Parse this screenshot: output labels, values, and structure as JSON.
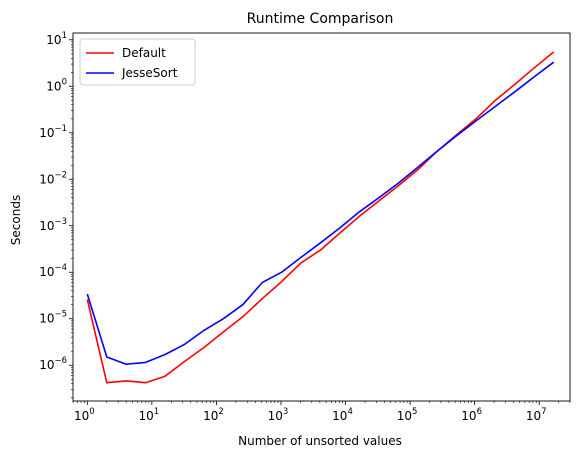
{
  "chart_data": {
    "type": "line",
    "title": "Runtime Comparison",
    "xlabel": "Number of unsorted values",
    "ylabel": "Seconds",
    "xscale": "log",
    "yscale": "log",
    "xlim": [
      0.6,
      30000000
    ],
    "ylim": [
      1.7e-07,
      14
    ],
    "xticks": [
      {
        "value": 1,
        "base": "10",
        "exp": "0"
      },
      {
        "value": 10,
        "base": "10",
        "exp": "1"
      },
      {
        "value": 100,
        "base": "10",
        "exp": "2"
      },
      {
        "value": 1000,
        "base": "10",
        "exp": "3"
      },
      {
        "value": 10000,
        "base": "10",
        "exp": "4"
      },
      {
        "value": 100000,
        "base": "10",
        "exp": "5"
      },
      {
        "value": 1000000,
        "base": "10",
        "exp": "6"
      },
      {
        "value": 10000000,
        "base": "10",
        "exp": "7"
      }
    ],
    "yticks": [
      {
        "value": 1e-06,
        "base": "10",
        "exp": "−6"
      },
      {
        "value": 1e-05,
        "base": "10",
        "exp": "−5"
      },
      {
        "value": 0.0001,
        "base": "10",
        "exp": "−4"
      },
      {
        "value": 0.001,
        "base": "10",
        "exp": "−3"
      },
      {
        "value": 0.01,
        "base": "10",
        "exp": "−2"
      },
      {
        "value": 0.1,
        "base": "10",
        "exp": "−1"
      },
      {
        "value": 1,
        "base": "10",
        "exp": "0"
      },
      {
        "value": 10,
        "base": "10",
        "exp": "1"
      }
    ],
    "grid": false,
    "legend": "top-left",
    "x": [
      1,
      2,
      4,
      8,
      16,
      32,
      64,
      128,
      256,
      512,
      1024,
      2048,
      4096,
      8192,
      16384,
      32768,
      65536,
      131072,
      262144,
      524288,
      1048576,
      2097152,
      4194304,
      8388608,
      16777216
    ],
    "series": [
      {
        "name": "Default",
        "color": "#ff0000",
        "values": [
          2.6e-05,
          4.2e-07,
          4.6e-07,
          4.2e-07,
          5.8e-07,
          1.2e-06,
          2.4e-06,
          5.2e-06,
          1.1e-05,
          2.7e-05,
          6.3e-05,
          0.00016,
          0.0003,
          0.0007,
          0.0016,
          0.0034,
          0.0072,
          0.016,
          0.04,
          0.09,
          0.2,
          0.5,
          1.1,
          2.5,
          5.5
        ]
      },
      {
        "name": "JesseSort",
        "color": "#0000ff",
        "values": [
          3.4e-05,
          1.5e-06,
          1.05e-06,
          1.15e-06,
          1.7e-06,
          2.8e-06,
          5.6e-06,
          1e-05,
          2e-05,
          6e-05,
          0.0001,
          0.00021,
          0.00043,
          0.0009,
          0.002,
          0.004,
          0.0082,
          0.018,
          0.04,
          0.086,
          0.18,
          0.37,
          0.76,
          1.6,
          3.3
        ]
      }
    ]
  }
}
